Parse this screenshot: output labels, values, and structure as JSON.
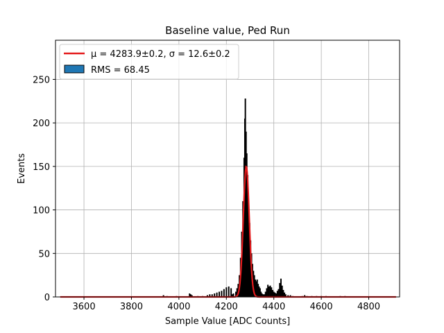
{
  "chart_data": {
    "type": "bar",
    "title": "Baseline value, Ped Run",
    "xlabel": "Sample Value [ADC Counts]",
    "ylabel": "Events",
    "xlim": [
      3480,
      4930
    ],
    "ylim": [
      0,
      295
    ],
    "x_ticks": [
      3600,
      3800,
      4000,
      4200,
      4400,
      4600,
      4800
    ],
    "y_ticks": [
      0,
      50,
      100,
      150,
      200,
      250
    ],
    "grid": true,
    "legend_position": "top-left",
    "legend": [
      {
        "label": "μ = 4283.9±0.2, σ = 12.6±0.2",
        "kind": "line",
        "color": "#e41a1c"
      },
      {
        "label": "RMS = 68.45",
        "kind": "patch",
        "color": "#1f77b4"
      }
    ],
    "histogram": {
      "color": "#000000",
      "bins": [
        [
          3935,
          2
        ],
        [
          3950,
          1
        ],
        [
          3990,
          1
        ],
        [
          4045,
          4
        ],
        [
          4050,
          3
        ],
        [
          4055,
          2
        ],
        [
          4080,
          1
        ],
        [
          4100,
          1
        ],
        [
          4120,
          2
        ],
        [
          4130,
          3
        ],
        [
          4140,
          3
        ],
        [
          4150,
          4
        ],
        [
          4160,
          5
        ],
        [
          4170,
          6
        ],
        [
          4180,
          7
        ],
        [
          4190,
          9
        ],
        [
          4200,
          11
        ],
        [
          4210,
          12
        ],
        [
          4220,
          10
        ],
        [
          4225,
          3
        ],
        [
          4230,
          4
        ],
        [
          4240,
          6
        ],
        [
          4245,
          10
        ],
        [
          4250,
          15
        ],
        [
          4255,
          25
        ],
        [
          4260,
          45
        ],
        [
          4265,
          75
        ],
        [
          4270,
          110
        ],
        [
          4275,
          160
        ],
        [
          4278,
          205
        ],
        [
          4280,
          228
        ],
        [
          4283,
          190
        ],
        [
          4286,
          165
        ],
        [
          4290,
          140
        ],
        [
          4294,
          110
        ],
        [
          4298,
          85
        ],
        [
          4302,
          65
        ],
        [
          4306,
          50
        ],
        [
          4310,
          38
        ],
        [
          4314,
          30
        ],
        [
          4318,
          25
        ],
        [
          4322,
          20
        ],
        [
          4326,
          18
        ],
        [
          4330,
          20
        ],
        [
          4334,
          15
        ],
        [
          4338,
          12
        ],
        [
          4342,
          10
        ],
        [
          4346,
          6
        ],
        [
          4350,
          4
        ],
        [
          4355,
          3
        ],
        [
          4360,
          3
        ],
        [
          4365,
          6
        ],
        [
          4370,
          10
        ],
        [
          4375,
          14
        ],
        [
          4380,
          12
        ],
        [
          4385,
          13
        ],
        [
          4390,
          11
        ],
        [
          4395,
          8
        ],
        [
          4400,
          6
        ],
        [
          4405,
          5
        ],
        [
          4410,
          4
        ],
        [
          4415,
          7
        ],
        [
          4420,
          9
        ],
        [
          4425,
          16
        ],
        [
          4430,
          21
        ],
        [
          4435,
          13
        ],
        [
          4440,
          8
        ],
        [
          4445,
          5
        ],
        [
          4450,
          3
        ],
        [
          4460,
          2
        ],
        [
          4470,
          2
        ],
        [
          4480,
          1
        ],
        [
          4520,
          1
        ],
        [
          4530,
          2
        ],
        [
          4540,
          1
        ],
        [
          4560,
          1
        ],
        [
          4580,
          1
        ],
        [
          4600,
          1
        ],
        [
          4620,
          1
        ],
        [
          4680,
          1
        ],
        [
          4700,
          1
        ]
      ]
    },
    "fit_curve": {
      "color": "#e41a1c",
      "mu": 4283.9,
      "sigma": 12.6,
      "amplitude": 150,
      "x_range": [
        3500,
        4915
      ]
    }
  }
}
